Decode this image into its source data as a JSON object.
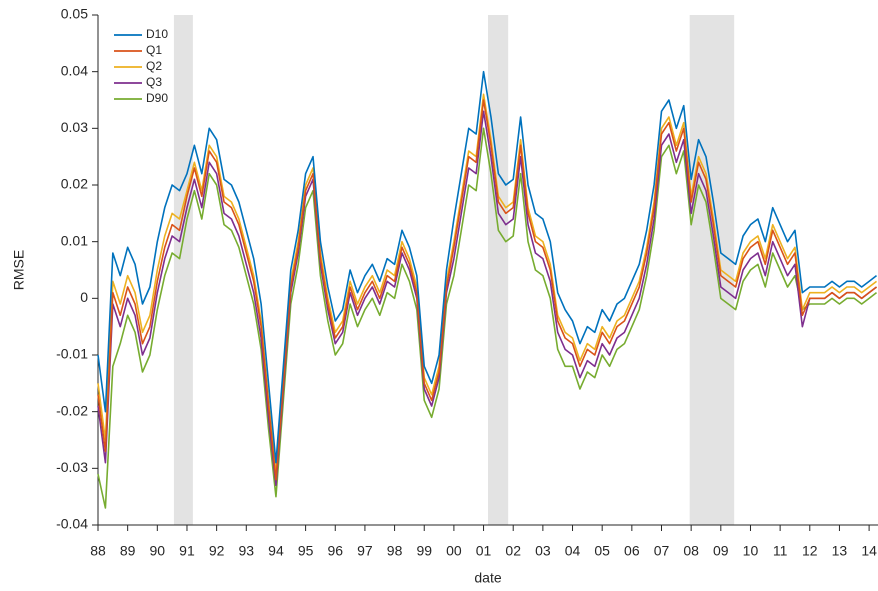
{
  "chart_data": {
    "type": "line",
    "x_label": "date",
    "y_label": "RMSE",
    "xlim": [
      1988,
      2014.3
    ],
    "ylim": [
      -0.04,
      0.05
    ],
    "yticks": [
      -0.04,
      -0.03,
      -0.02,
      -0.01,
      0,
      0.01,
      0.02,
      0.03,
      0.04,
      0.05
    ],
    "xticks": [
      {
        "value": 1988,
        "label": "88"
      },
      {
        "value": 1989,
        "label": "89"
      },
      {
        "value": 1990,
        "label": "90"
      },
      {
        "value": 1991,
        "label": "91"
      },
      {
        "value": 1992,
        "label": "92"
      },
      {
        "value": 1993,
        "label": "93"
      },
      {
        "value": 1994,
        "label": "94"
      },
      {
        "value": 1995,
        "label": "95"
      },
      {
        "value": 1996,
        "label": "96"
      },
      {
        "value": 1997,
        "label": "97"
      },
      {
        "value": 1998,
        "label": "98"
      },
      {
        "value": 1999,
        "label": "99"
      },
      {
        "value": 2000,
        "label": "00"
      },
      {
        "value": 2001,
        "label": "01"
      },
      {
        "value": 2002,
        "label": "02"
      },
      {
        "value": 2003,
        "label": "03"
      },
      {
        "value": 2004,
        "label": "04"
      },
      {
        "value": 2005,
        "label": "05"
      },
      {
        "value": 2006,
        "label": "06"
      },
      {
        "value": 2007,
        "label": "07"
      },
      {
        "value": 2008,
        "label": "08"
      },
      {
        "value": 2009,
        "label": "09"
      },
      {
        "value": 2010,
        "label": "10"
      },
      {
        "value": 2011,
        "label": "11"
      },
      {
        "value": 2012,
        "label": "12"
      },
      {
        "value": 2013,
        "label": "13"
      },
      {
        "value": 2014,
        "label": "14"
      }
    ],
    "legend": "upper-left",
    "shade_color": "#e3e3e3",
    "shaded_periods": [
      [
        1990.56,
        1991.2
      ],
      [
        2001.15,
        2001.83
      ],
      [
        2007.95,
        2009.45
      ]
    ],
    "x": [
      1988,
      1988.25,
      1988.5,
      1988.75,
      1989,
      1989.25,
      1989.5,
      1989.75,
      1990,
      1990.25,
      1990.5,
      1990.75,
      1991,
      1991.25,
      1991.5,
      1991.75,
      1992,
      1992.25,
      1992.5,
      1992.75,
      1993,
      1993.25,
      1993.5,
      1993.75,
      1994,
      1994.25,
      1994.5,
      1994.75,
      1995,
      1995.25,
      1995.5,
      1995.75,
      1996,
      1996.25,
      1996.5,
      1996.75,
      1997,
      1997.25,
      1997.5,
      1997.75,
      1998,
      1998.25,
      1998.5,
      1998.75,
      1999,
      1999.25,
      1999.5,
      1999.75,
      2000,
      2000.25,
      2000.5,
      2000.75,
      2001,
      2001.25,
      2001.5,
      2001.75,
      2002,
      2002.25,
      2002.5,
      2002.75,
      2003,
      2003.25,
      2003.5,
      2003.75,
      2004,
      2004.25,
      2004.5,
      2004.75,
      2005,
      2005.25,
      2005.5,
      2005.75,
      2006,
      2006.25,
      2006.5,
      2006.75,
      2007,
      2007.25,
      2007.5,
      2007.75,
      2008,
      2008.25,
      2008.5,
      2008.75,
      2009,
      2009.25,
      2009.5,
      2009.75,
      2010,
      2010.25,
      2010.5,
      2010.75,
      2011,
      2011.25,
      2011.5,
      2011.75,
      2012,
      2012.25,
      2012.5,
      2012.75,
      2013,
      2013.25,
      2013.5,
      2013.75,
      2014,
      2014.25
    ],
    "series": [
      {
        "name": "D10",
        "color": "#0072bd",
        "values": [
          -0.01,
          -0.02,
          0.008,
          0.004,
          0.009,
          0.006,
          -0.001,
          0.002,
          0.01,
          0.016,
          0.02,
          0.019,
          0.022,
          0.027,
          0.022,
          0.03,
          0.028,
          0.021,
          0.02,
          0.017,
          0.012,
          0.007,
          -0.001,
          -0.015,
          -0.029,
          -0.012,
          0.005,
          0.012,
          0.022,
          0.025,
          0.01,
          0.002,
          -0.004,
          -0.002,
          0.005,
          0.001,
          0.004,
          0.006,
          0.003,
          0.007,
          0.006,
          0.012,
          0.009,
          0.004,
          -0.012,
          -0.015,
          -0.01,
          0.005,
          0.014,
          0.022,
          0.03,
          0.029,
          0.04,
          0.032,
          0.022,
          0.02,
          0.021,
          0.032,
          0.02,
          0.015,
          0.014,
          0.01,
          0.001,
          -0.002,
          -0.004,
          -0.008,
          -0.005,
          -0.006,
          -0.002,
          -0.004,
          -0.001,
          0.0,
          0.003,
          0.006,
          0.012,
          0.02,
          0.033,
          0.035,
          0.03,
          0.034,
          0.021,
          0.028,
          0.025,
          0.017,
          0.008,
          0.007,
          0.006,
          0.011,
          0.013,
          0.014,
          0.01,
          0.016,
          0.013,
          0.01,
          0.012,
          0.001,
          0.002,
          0.002,
          0.002,
          0.003,
          0.002,
          0.003,
          0.003,
          0.002,
          0.003,
          0.004
        ]
      },
      {
        "name": "Q1",
        "color": "#d95319",
        "values": [
          -0.017,
          -0.027,
          0.001,
          -0.003,
          0.002,
          -0.001,
          -0.008,
          -0.005,
          0.003,
          0.009,
          0.013,
          0.012,
          0.018,
          0.023,
          0.018,
          0.026,
          0.024,
          0.017,
          0.016,
          0.013,
          0.008,
          0.003,
          -0.005,
          -0.019,
          -0.032,
          -0.015,
          0.002,
          0.009,
          0.019,
          0.022,
          0.007,
          -0.001,
          -0.007,
          -0.005,
          0.002,
          -0.002,
          0.001,
          0.003,
          0.0,
          0.004,
          0.003,
          0.009,
          0.006,
          0.001,
          -0.015,
          -0.018,
          -0.013,
          0.002,
          0.009,
          0.017,
          0.025,
          0.024,
          0.035,
          0.027,
          0.017,
          0.015,
          0.016,
          0.027,
          0.015,
          0.01,
          0.009,
          0.005,
          -0.004,
          -0.007,
          -0.008,
          -0.012,
          -0.009,
          -0.01,
          -0.006,
          -0.008,
          -0.005,
          -0.004,
          -0.001,
          0.002,
          0.008,
          0.016,
          0.029,
          0.031,
          0.026,
          0.03,
          0.017,
          0.024,
          0.021,
          0.013,
          0.004,
          0.003,
          0.002,
          0.007,
          0.009,
          0.01,
          0.006,
          0.012,
          0.009,
          0.006,
          0.008,
          -0.003,
          0.0,
          0.0,
          0.0,
          0.001,
          0.0,
          0.001,
          0.001,
          0.0,
          0.001,
          0.002
        ]
      },
      {
        "name": "Q2",
        "color": "#edb120",
        "values": [
          -0.015,
          -0.025,
          0.003,
          -0.001,
          0.004,
          0.001,
          -0.006,
          -0.003,
          0.005,
          0.011,
          0.015,
          0.014,
          0.019,
          0.024,
          0.019,
          0.027,
          0.025,
          0.018,
          0.017,
          0.014,
          0.009,
          0.004,
          -0.004,
          -0.018,
          -0.031,
          -0.014,
          0.003,
          0.01,
          0.02,
          0.023,
          0.008,
          0.0,
          -0.006,
          -0.004,
          0.003,
          -0.001,
          0.002,
          0.004,
          0.001,
          0.005,
          0.004,
          0.01,
          0.007,
          0.002,
          -0.014,
          -0.017,
          -0.012,
          0.003,
          0.01,
          0.018,
          0.026,
          0.025,
          0.036,
          0.028,
          0.018,
          0.016,
          0.017,
          0.028,
          0.016,
          0.011,
          0.01,
          0.006,
          -0.003,
          -0.006,
          -0.007,
          -0.011,
          -0.008,
          -0.009,
          -0.005,
          -0.007,
          -0.004,
          -0.003,
          0.0,
          0.003,
          0.009,
          0.017,
          0.03,
          0.032,
          0.027,
          0.031,
          0.018,
          0.025,
          0.022,
          0.014,
          0.005,
          0.004,
          0.003,
          0.008,
          0.01,
          0.011,
          0.007,
          0.013,
          0.01,
          0.007,
          0.009,
          -0.002,
          0.001,
          0.001,
          0.001,
          0.002,
          0.001,
          0.002,
          0.002,
          0.001,
          0.002,
          0.003
        ]
      },
      {
        "name": "Q3",
        "color": "#7e2f8e",
        "values": [
          -0.019,
          -0.029,
          -0.001,
          -0.005,
          0.0,
          -0.003,
          -0.01,
          -0.007,
          0.001,
          0.007,
          0.011,
          0.01,
          0.016,
          0.021,
          0.016,
          0.024,
          0.022,
          0.015,
          0.014,
          0.011,
          0.006,
          0.001,
          -0.007,
          -0.021,
          -0.033,
          -0.016,
          0.001,
          0.008,
          0.018,
          0.021,
          0.006,
          -0.002,
          -0.008,
          -0.006,
          0.001,
          -0.003,
          0.0,
          0.002,
          -0.001,
          0.003,
          0.002,
          0.008,
          0.005,
          0.0,
          -0.016,
          -0.019,
          -0.014,
          0.001,
          0.007,
          0.015,
          0.023,
          0.022,
          0.033,
          0.025,
          0.015,
          0.013,
          0.014,
          0.025,
          0.013,
          0.008,
          0.007,
          0.003,
          -0.006,
          -0.009,
          -0.01,
          -0.014,
          -0.011,
          -0.012,
          -0.008,
          -0.01,
          -0.007,
          -0.006,
          -0.003,
          0.0,
          0.006,
          0.014,
          0.027,
          0.029,
          0.024,
          0.028,
          0.015,
          0.022,
          0.019,
          0.011,
          0.002,
          0.001,
          0.0,
          0.005,
          0.007,
          0.008,
          0.004,
          0.01,
          0.007,
          0.004,
          0.006,
          -0.005,
          0.0,
          0.0,
          0.0,
          0.001,
          0.0,
          0.001,
          0.001,
          0.0,
          0.001,
          0.002
        ]
      },
      {
        "name": "D90",
        "color": "#77ac30",
        "values": [
          -0.031,
          -0.037,
          -0.012,
          -0.008,
          -0.003,
          -0.006,
          -0.013,
          -0.01,
          -0.002,
          0.004,
          0.008,
          0.007,
          0.014,
          0.019,
          0.014,
          0.022,
          0.02,
          0.013,
          0.012,
          0.009,
          0.004,
          -0.001,
          -0.009,
          -0.023,
          -0.035,
          -0.018,
          -0.001,
          0.006,
          0.016,
          0.019,
          0.004,
          -0.004,
          -0.01,
          -0.008,
          -0.001,
          -0.005,
          -0.002,
          0.0,
          -0.003,
          0.001,
          0.0,
          0.006,
          0.003,
          -0.002,
          -0.018,
          -0.021,
          -0.016,
          -0.001,
          0.004,
          0.012,
          0.02,
          0.019,
          0.03,
          0.022,
          0.012,
          0.01,
          0.011,
          0.022,
          0.01,
          0.005,
          0.004,
          0.0,
          -0.009,
          -0.012,
          -0.012,
          -0.016,
          -0.013,
          -0.014,
          -0.01,
          -0.012,
          -0.009,
          -0.008,
          -0.005,
          -0.002,
          0.004,
          0.012,
          0.025,
          0.027,
          0.022,
          0.026,
          0.013,
          0.02,
          0.017,
          0.009,
          0.0,
          -0.001,
          -0.002,
          0.003,
          0.005,
          0.006,
          0.002,
          0.008,
          0.005,
          0.002,
          0.004,
          -0.002,
          -0.001,
          -0.001,
          -0.001,
          0.0,
          -0.001,
          0.0,
          0.0,
          -0.001,
          0.0,
          0.001
        ]
      }
    ]
  }
}
